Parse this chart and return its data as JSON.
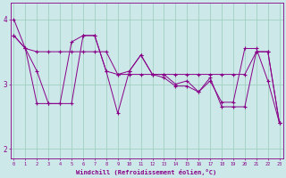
{
  "xlabel": "Windchill (Refroidissement éolien,°C)",
  "bg_color": "#cce8e8",
  "line_color": "#880088",
  "grid_color": "#99ccbb",
  "x_ticks": [
    0,
    1,
    2,
    3,
    4,
    5,
    6,
    7,
    8,
    9,
    10,
    11,
    12,
    13,
    14,
    15,
    16,
    17,
    18,
    19,
    20,
    21,
    22,
    23
  ],
  "ylim": [
    1.85,
    4.25
  ],
  "xlim": [
    -0.3,
    23.3
  ],
  "series": [
    [
      3.75,
      3.55,
      3.5,
      3.5,
      3.5,
      3.5,
      3.5,
      3.5,
      3.5,
      3.15,
      3.15,
      3.15,
      3.15,
      3.15,
      3.15,
      3.15,
      3.15,
      3.15,
      3.15,
      3.15,
      3.15,
      3.5,
      3.5,
      2.4
    ],
    [
      4.0,
      3.55,
      3.2,
      2.7,
      2.7,
      3.65,
      3.75,
      3.75,
      3.2,
      3.15,
      3.2,
      3.45,
      3.15,
      3.15,
      3.0,
      3.05,
      2.88,
      3.05,
      2.72,
      2.72,
      3.55,
      3.55,
      3.05,
      2.4
    ],
    [
      3.75,
      3.55,
      2.7,
      2.7,
      2.7,
      2.7,
      3.75,
      3.75,
      3.2,
      2.55,
      3.2,
      3.45,
      3.15,
      3.1,
      2.97,
      2.97,
      2.88,
      3.1,
      2.65,
      2.65,
      2.65,
      3.5,
      3.5,
      2.4
    ]
  ]
}
